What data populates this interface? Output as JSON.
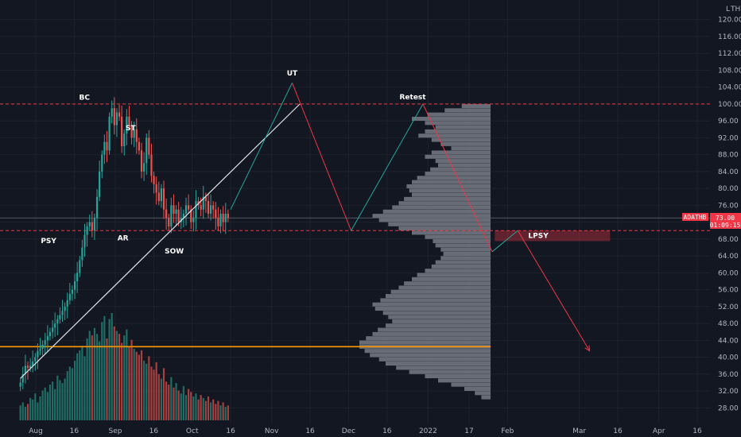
{
  "chart_data": {
    "type": "candlestick",
    "symbol": "ADATHB",
    "currency_label": "THB",
    "scale_toggle": "L",
    "ylim": [
      26,
      122
    ],
    "y_ticks": [
      28,
      32,
      36,
      40,
      44,
      48,
      52,
      56,
      60,
      64,
      68,
      72,
      76,
      80,
      84,
      88,
      92,
      96,
      100,
      104,
      108,
      112,
      116,
      120
    ],
    "x_ticks": [
      {
        "label": "Aug",
        "date": "2021-08-01"
      },
      {
        "label": "16",
        "date": "2021-08-16"
      },
      {
        "label": "Sep",
        "date": "2021-09-01"
      },
      {
        "label": "16",
        "date": "2021-09-16"
      },
      {
        "label": "Oct",
        "date": "2021-10-01"
      },
      {
        "label": "16",
        "date": "2021-10-16"
      },
      {
        "label": "Nov",
        "date": "2021-11-01"
      },
      {
        "label": "16",
        "date": "2021-11-16"
      },
      {
        "label": "Dec",
        "date": "2021-12-01"
      },
      {
        "label": "16",
        "date": "2021-12-16"
      },
      {
        "label": "2022",
        "date": "2022-01-01"
      },
      {
        "label": "17",
        "date": "2022-01-17"
      },
      {
        "label": "Feb",
        "date": "2022-02-01"
      },
      {
        "label": "Mar",
        "date": "2022-03-01"
      },
      {
        "label": "16",
        "date": "2022-03-16"
      },
      {
        "label": "Apr",
        "date": "2022-04-01"
      },
      {
        "label": "16",
        "date": "2022-04-16"
      }
    ],
    "last_price": {
      "value": "73.00",
      "countdown": "01:09:15",
      "price": 73.0
    },
    "close_prices": [
      34,
      36,
      38,
      37.5,
      38,
      39,
      40,
      41.5,
      42,
      43,
      44,
      45,
      46,
      47,
      48,
      49,
      50,
      51,
      52,
      53.5,
      55,
      56,
      58,
      60,
      63,
      66,
      69,
      71,
      72,
      70,
      73,
      78,
      84,
      88,
      91,
      89,
      97,
      99,
      95,
      98,
      97,
      90,
      93,
      97,
      95,
      92,
      94,
      91,
      89,
      84,
      86,
      92,
      88,
      83,
      81,
      79,
      77,
      80,
      75,
      73,
      71,
      76,
      74,
      75,
      72,
      73,
      74,
      76,
      75,
      72,
      73,
      77,
      76,
      75,
      78,
      77,
      74,
      76,
      75,
      73,
      71,
      74,
      72,
      74,
      73
    ],
    "volumes": [
      10,
      12,
      9,
      11,
      15,
      14,
      18,
      12,
      16,
      20,
      22,
      19,
      24,
      26,
      21,
      30,
      27,
      25,
      28,
      33,
      36,
      35,
      40,
      45,
      47,
      50,
      43,
      55,
      60,
      57,
      62,
      58,
      53,
      66,
      70,
      55,
      68,
      72,
      63,
      60,
      58,
      52,
      57,
      61,
      50,
      54,
      48,
      46,
      44,
      47,
      40,
      38,
      43,
      36,
      34,
      39,
      31,
      28,
      35,
      26,
      24,
      29,
      22,
      25,
      20,
      18,
      23,
      17,
      21,
      19,
      16,
      18,
      14,
      17,
      15,
      13,
      16,
      12,
      14,
      11,
      13,
      10,
      12,
      9,
      10
    ],
    "levels": {
      "resistance": 100,
      "support": 70,
      "demand": 42.5
    },
    "trendline": {
      "from": {
        "date": "2021-07-26",
        "price": 35
      },
      "to": {
        "date": "2021-11-12",
        "price": 100
      }
    },
    "projection_path": [
      {
        "date": "2021-10-16",
        "price": 75
      },
      {
        "date": "2021-11-09",
        "price": 105
      },
      {
        "date": "2021-12-02",
        "price": 70
      },
      {
        "date": "2021-12-30",
        "price": 100
      },
      {
        "date": "2022-01-26",
        "price": 65
      },
      {
        "date": "2022-02-05",
        "price": 70
      },
      {
        "date": "2022-03-05",
        "price": 41.5
      }
    ],
    "lpsy_zone": {
      "from": "2022-01-27",
      "to": "2022-03-13",
      "low": 67.5,
      "high": 70
    },
    "annotations": [
      {
        "id": "psy",
        "text": "PSY",
        "date": "2021-08-06",
        "price": 67.6
      },
      {
        "id": "bc",
        "text": "BC",
        "date": "2021-08-20",
        "price": 101.6
      },
      {
        "id": "st",
        "text": "ST",
        "date": "2021-09-07",
        "price": 94.3
      },
      {
        "id": "ar",
        "text": "AR",
        "date": "2021-09-04",
        "price": 68.3
      },
      {
        "id": "sow",
        "text": "SOW",
        "date": "2021-09-24",
        "price": 65.2
      },
      {
        "id": "ut",
        "text": "UT",
        "date": "2021-11-09",
        "price": 107.3
      },
      {
        "id": "retest",
        "text": "Retest",
        "date": "2021-12-26",
        "price": 101.7
      },
      {
        "id": "lpsy",
        "text": "LPSY",
        "date": "2022-02-13",
        "price": 68.8
      }
    ],
    "volume_profile": [
      [
        99.5,
        0.22
      ],
      [
        98.5,
        0.35
      ],
      [
        97.5,
        0.48
      ],
      [
        96.5,
        0.6
      ],
      [
        95.5,
        0.5
      ],
      [
        94.5,
        0.42
      ],
      [
        93.5,
        0.5
      ],
      [
        92.5,
        0.55
      ],
      [
        91.5,
        0.45
      ],
      [
        90.5,
        0.38
      ],
      [
        89.5,
        0.3
      ],
      [
        88.5,
        0.45
      ],
      [
        87.5,
        0.5
      ],
      [
        86.5,
        0.42
      ],
      [
        85.5,
        0.4
      ],
      [
        84.5,
        0.46
      ],
      [
        83.5,
        0.5
      ],
      [
        82.5,
        0.56
      ],
      [
        81.5,
        0.6
      ],
      [
        80.5,
        0.64
      ],
      [
        79.5,
        0.62
      ],
      [
        78.5,
        0.6
      ],
      [
        77.5,
        0.66
      ],
      [
        76.5,
        0.7
      ],
      [
        75.5,
        0.75
      ],
      [
        74.5,
        0.82
      ],
      [
        73.5,
        0.9
      ],
      [
        72.5,
        0.85
      ],
      [
        71.5,
        0.78
      ],
      [
        70.5,
        0.7
      ],
      [
        69.5,
        0.6
      ],
      [
        68.5,
        0.5
      ],
      [
        67.5,
        0.44
      ],
      [
        66.5,
        0.42
      ],
      [
        65.5,
        0.38
      ],
      [
        64.5,
        0.36
      ],
      [
        63.5,
        0.38
      ],
      [
        62.5,
        0.42
      ],
      [
        61.5,
        0.45
      ],
      [
        60.5,
        0.5
      ],
      [
        59.5,
        0.56
      ],
      [
        58.5,
        0.6
      ],
      [
        57.5,
        0.66
      ],
      [
        56.5,
        0.7
      ],
      [
        55.5,
        0.76
      ],
      [
        54.5,
        0.8
      ],
      [
        53.5,
        0.84
      ],
      [
        52.5,
        0.9
      ],
      [
        51.5,
        0.88
      ],
      [
        50.5,
        0.82
      ],
      [
        49.5,
        0.78
      ],
      [
        48.5,
        0.75
      ],
      [
        47.5,
        0.8
      ],
      [
        46.5,
        0.86
      ],
      [
        45.5,
        0.9
      ],
      [
        44.5,
        0.95
      ],
      [
        43.5,
        1.0
      ],
      [
        42.5,
        1.0
      ],
      [
        41.5,
        0.96
      ],
      [
        40.5,
        0.92
      ],
      [
        39.5,
        0.85
      ],
      [
        38.5,
        0.8
      ],
      [
        37.5,
        0.72
      ],
      [
        36.5,
        0.62
      ],
      [
        35.5,
        0.5
      ],
      [
        34.5,
        0.4
      ],
      [
        33.5,
        0.3
      ],
      [
        32.5,
        0.2
      ],
      [
        31.5,
        0.12
      ],
      [
        30.5,
        0.07
      ]
    ],
    "colors": {
      "background": "#131722",
      "up": "#26a69a",
      "down": "#ef5350",
      "volume_up": "#1f6e66",
      "volume_down": "#a8403f",
      "level_line": "#f23645",
      "demand_line": "#ff9800",
      "trendline": "#e0e3eb",
      "path_up": "#26a69a",
      "path_down": "#f23645",
      "profile": "#787b86",
      "axis_text": "#b2b5be",
      "grid": "#1e222d"
    }
  }
}
